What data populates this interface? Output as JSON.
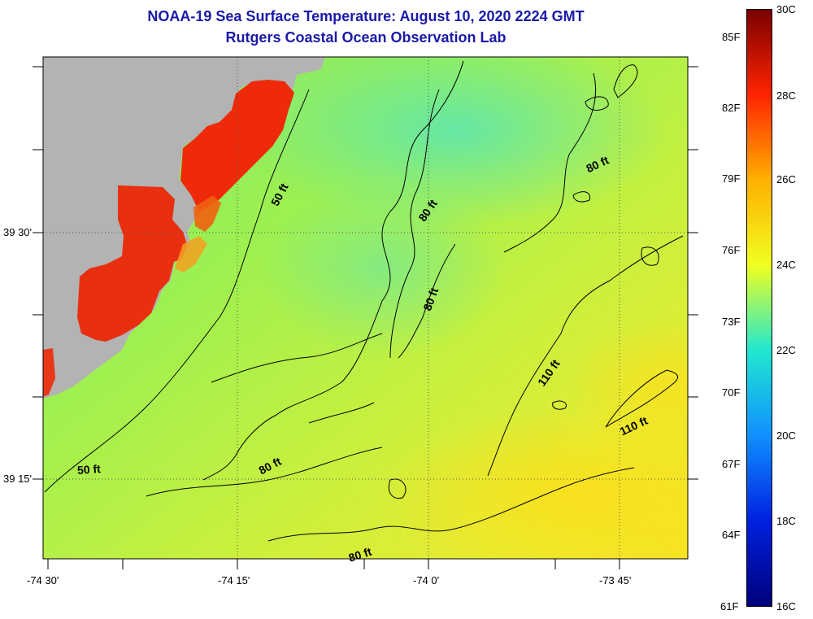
{
  "title": {
    "line1": "NOAA-19 Sea Surface Temperature:  August 10, 2020 2224 GMT",
    "line2": "Rutgers Coastal Ocean Observation Lab"
  },
  "map": {
    "lat_labels": [
      "39 30'",
      "39 15'"
    ],
    "lon_labels": [
      "-74 30'",
      "-74 15'",
      "-74 0'",
      "-73 45'"
    ],
    "contour_labels": [
      "50 ft",
      "50 ft",
      "80 ft",
      "80 ft",
      "80 ft",
      "80 ft",
      "110 ft",
      "110 ft"
    ],
    "land_color": "#b3b3b3"
  },
  "colorbar": {
    "celsius": [
      "30C",
      "28C",
      "26C",
      "24C",
      "22C",
      "20C",
      "18C",
      "16C"
    ],
    "fahrenheit": [
      "85F",
      "82F",
      "79F",
      "76F",
      "73F",
      "70F",
      "67F",
      "64F",
      "61F"
    ],
    "colors": [
      "#7a0000",
      "#ff2400",
      "#ffb000",
      "#f0ff20",
      "#20e8d0",
      "#1090ff",
      "#0020e0",
      "#00007a"
    ]
  }
}
